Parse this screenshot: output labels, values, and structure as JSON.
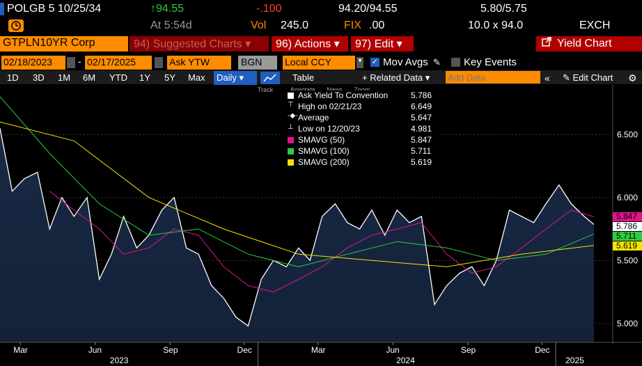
{
  "quote": {
    "ticker": "POLGB 5 10/25/34",
    "last": "↑94.55",
    "change": "-.100",
    "bid_ask": "94.20/94.55",
    "yield_bid_ask": "5.80/5.75",
    "time": "At 5:54d",
    "volume_label": "Vol",
    "volume": "245.0",
    "fix_label": "FIX",
    "fix": ".00",
    "size": "10.0 x 94.0",
    "exchange": "EXCH"
  },
  "toolbar": {
    "security": "GTPLN10YR Corp",
    "suggested": "94) Suggested Charts ▾",
    "actions": "96) Actions ▾",
    "edit": "97) Edit ▾",
    "yield_chart": "Yield Chart"
  },
  "settings": {
    "start_date": "02/18/2023",
    "end_date": "02/17/2025",
    "field": "Ask YTW",
    "source": "BGN",
    "currency": "Local CCY",
    "mov_avgs": "Mov Avgs",
    "key_events": "Key Events"
  },
  "range_bar": {
    "ranges": [
      "1D",
      "3D",
      "1M",
      "6M",
      "YTD",
      "1Y",
      "5Y",
      "Max"
    ],
    "period": "Daily ▾",
    "table": "Table",
    "related": "+ Related Data ▾",
    "add_data_placeholder": "Add Data",
    "edit_chart": "Edit Chart"
  },
  "chart_tools": [
    "Track",
    "Annotate",
    "News",
    "Zoom"
  ],
  "legend": [
    {
      "name": "Ask Yield To Convention",
      "value": "5.786",
      "color": "#ffffff"
    },
    {
      "name": "High on 02/21/23",
      "value": "6.649",
      "color": "#ffffff"
    },
    {
      "name": "Average",
      "value": "5.647",
      "color": "#ffffff"
    },
    {
      "name": "Low on 12/20/23",
      "value": "4.981",
      "color": "#ffffff"
    },
    {
      "name": "SMAVG (50)",
      "value": "5.847",
      "color": "#e0138c"
    },
    {
      "name": "SMAVG (100)",
      "value": "5.711",
      "color": "#2ecc40"
    },
    {
      "name": "SMAVG (200)",
      "value": "5.619",
      "color": "#f5e400"
    }
  ],
  "chart_data": {
    "type": "line",
    "x_range": [
      "2023-02-18",
      "2025-02-17"
    ],
    "ylim": [
      4.85,
      6.85
    ],
    "y_ticks": [
      "6.500",
      "6.000",
      "5.500",
      "5.000"
    ],
    "x_ticks": [
      "Mar",
      "Jun",
      "Sep",
      "Dec",
      "Mar",
      "Jun",
      "Sep",
      "Dec"
    ],
    "years": [
      "2023",
      "2024",
      "2025"
    ],
    "series": [
      {
        "name": "Ask Yield To Convention",
        "color": "#ffffff",
        "x": [
          "2023-02-18",
          "2023-03-05",
          "2023-03-20",
          "2023-04-05",
          "2023-04-20",
          "2023-05-05",
          "2023-05-20",
          "2023-06-05",
          "2023-06-20",
          "2023-07-05",
          "2023-07-20",
          "2023-08-05",
          "2023-08-20",
          "2023-09-05",
          "2023-09-20",
          "2023-10-05",
          "2023-10-20",
          "2023-11-05",
          "2023-11-20",
          "2023-12-05",
          "2023-12-20",
          "2024-01-05",
          "2024-01-20",
          "2024-02-05",
          "2024-02-20",
          "2024-03-05",
          "2024-03-20",
          "2024-04-05",
          "2024-04-20",
          "2024-05-05",
          "2024-05-20",
          "2024-06-05",
          "2024-06-20",
          "2024-07-05",
          "2024-07-20",
          "2024-08-05",
          "2024-08-20",
          "2024-09-05",
          "2024-09-20",
          "2024-10-05",
          "2024-10-20",
          "2024-11-05",
          "2024-11-20",
          "2024-12-05",
          "2024-12-20",
          "2025-01-05",
          "2025-01-20",
          "2025-02-05",
          "2025-02-17"
        ],
        "values": [
          6.55,
          6.05,
          6.15,
          6.2,
          5.75,
          6.0,
          5.85,
          6.0,
          5.35,
          5.55,
          5.85,
          5.6,
          5.7,
          5.9,
          6.0,
          5.6,
          5.55,
          5.3,
          5.2,
          5.05,
          4.98,
          5.35,
          5.5,
          5.45,
          5.6,
          5.5,
          5.85,
          5.95,
          5.8,
          5.75,
          5.9,
          5.7,
          5.9,
          5.8,
          5.85,
          5.15,
          5.3,
          5.4,
          5.45,
          5.3,
          5.5,
          5.9,
          5.85,
          5.8,
          5.95,
          6.1,
          5.95,
          5.85,
          5.786
        ]
      },
      {
        "name": "SMAVG (50)",
        "color": "#e0138c",
        "x": [
          "2023-04-20",
          "2023-05-20",
          "2023-06-20",
          "2023-07-20",
          "2023-08-20",
          "2023-09-20",
          "2023-10-20",
          "2023-11-20",
          "2023-12-20",
          "2024-01-20",
          "2024-02-20",
          "2024-03-20",
          "2024-04-20",
          "2024-05-20",
          "2024-06-20",
          "2024-07-20",
          "2024-08-20",
          "2024-09-20",
          "2024-10-20",
          "2024-11-20",
          "2024-12-20",
          "2025-01-20",
          "2025-02-17"
        ],
        "values": [
          6.05,
          5.9,
          5.75,
          5.55,
          5.6,
          5.75,
          5.7,
          5.45,
          5.3,
          5.25,
          5.35,
          5.45,
          5.6,
          5.7,
          5.75,
          5.8,
          5.55,
          5.4,
          5.45,
          5.6,
          5.75,
          5.9,
          5.847
        ]
      },
      {
        "name": "SMAVG (100)",
        "color": "#2ecc40",
        "x": [
          "2023-02-18",
          "2023-04-20",
          "2023-06-20",
          "2023-08-20",
          "2023-10-20",
          "2023-12-20",
          "2024-02-20",
          "2024-04-20",
          "2024-06-20",
          "2024-08-20",
          "2024-10-20",
          "2024-12-20",
          "2025-02-17"
        ],
        "values": [
          6.8,
          6.35,
          5.95,
          5.7,
          5.75,
          5.55,
          5.45,
          5.55,
          5.65,
          5.6,
          5.5,
          5.55,
          5.711
        ]
      },
      {
        "name": "SMAVG (200)",
        "color": "#f5e400",
        "x": [
          "2023-02-18",
          "2023-05-20",
          "2023-08-20",
          "2023-11-20",
          "2024-02-20",
          "2024-05-20",
          "2024-08-20",
          "2024-11-20",
          "2025-02-17"
        ],
        "values": [
          6.6,
          6.45,
          6.0,
          5.75,
          5.55,
          5.5,
          5.45,
          5.55,
          5.619
        ]
      }
    ]
  },
  "last_tags": [
    {
      "label": "5.847",
      "color": "#e0138c"
    },
    {
      "label": "5.786",
      "color": "#ffffff"
    },
    {
      "label": "5.711",
      "color": "#2ecc40"
    },
    {
      "label": "5.619",
      "color": "#f5e400"
    }
  ]
}
